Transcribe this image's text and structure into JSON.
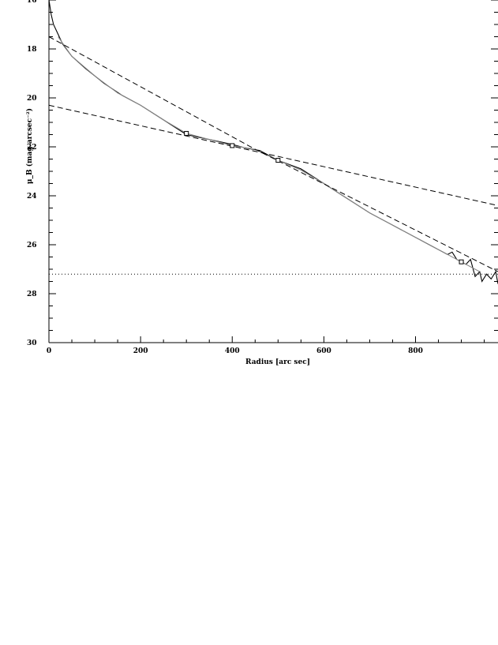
{
  "chart_data": {
    "type": "line",
    "xlabel": "Radius [arc sec]",
    "ylabel": "μ_B (mag arcsec⁻²)",
    "xlim": [
      0,
      980
    ],
    "ylim": [
      30,
      16
    ],
    "x_ticks": [
      0,
      200,
      400,
      600,
      800
    ],
    "x_tick_labels": [
      "0",
      "200",
      "400",
      "600",
      "800"
    ],
    "y_ticks": [
      18,
      20,
      22,
      24,
      26,
      28,
      30
    ],
    "y_tick_labels": [
      "18",
      "20",
      "22",
      "24",
      "26",
      "28",
      "30"
    ],
    "grid": false,
    "legend": "none",
    "series": [
      {
        "style": "solid",
        "color": "#000000",
        "points": [
          [
            0,
            16
          ],
          [
            5,
            16.6
          ],
          [
            10,
            17
          ],
          [
            20,
            17.4
          ],
          [
            30,
            17.8
          ],
          [
            50,
            18.3
          ],
          [
            80,
            18.8
          ],
          [
            120,
            19.4
          ],
          [
            160,
            19.9
          ],
          [
            200,
            20.3
          ],
          [
            250,
            20.9
          ],
          [
            300,
            21.5
          ],
          [
            350,
            21.7
          ],
          [
            400,
            21.9
          ],
          [
            430,
            22.05
          ],
          [
            460,
            22.15
          ],
          [
            500,
            22.55
          ],
          [
            550,
            22.9
          ],
          [
            600,
            23.5
          ],
          [
            650,
            24.1
          ],
          [
            700,
            24.7
          ],
          [
            750,
            25.2
          ],
          [
            800,
            25.7
          ],
          [
            830,
            26.0
          ],
          [
            850,
            26.2
          ],
          [
            870,
            26.4
          ],
          [
            880,
            26.3
          ],
          [
            890,
            26.6
          ],
          [
            900,
            26.7
          ],
          [
            910,
            26.8
          ],
          [
            920,
            26.6
          ],
          [
            930,
            27.3
          ],
          [
            940,
            27.1
          ],
          [
            945,
            27.5
          ],
          [
            955,
            27.2
          ],
          [
            965,
            27.4
          ],
          [
            975,
            27.1
          ],
          [
            980,
            27.6
          ]
        ]
      },
      {
        "style": "solid",
        "color": "#888888",
        "points": [
          [
            20,
            17.5
          ],
          [
            50,
            18.3
          ],
          [
            100,
            19.1
          ],
          [
            150,
            19.8
          ],
          [
            200,
            20.3
          ],
          [
            250,
            20.9
          ],
          [
            300,
            21.45
          ],
          [
            350,
            21.7
          ],
          [
            400,
            21.95
          ],
          [
            450,
            22.1
          ],
          [
            500,
            22.55
          ],
          [
            550,
            22.95
          ],
          [
            600,
            23.5
          ],
          [
            650,
            24.1
          ],
          [
            700,
            24.7
          ],
          [
            750,
            25.2
          ],
          [
            800,
            25.7
          ],
          [
            850,
            26.2
          ],
          [
            900,
            26.7
          ],
          [
            940,
            27.1
          ]
        ]
      },
      {
        "style": "dashed",
        "color": "#000000",
        "points": [
          [
            0,
            17.5
          ],
          [
            450,
            22.1
          ],
          [
            980,
            27.1
          ]
        ]
      },
      {
        "style": "dashed",
        "color": "#000000",
        "points": [
          [
            0,
            20.3
          ],
          [
            980,
            24.4
          ]
        ]
      },
      {
        "style": "dotted",
        "color": "#000000",
        "points": [
          [
            0,
            27.2
          ],
          [
            980,
            27.2
          ]
        ]
      }
    ],
    "markers": [
      {
        "shape": "square",
        "x": 300,
        "y": 21.45
      },
      {
        "shape": "square",
        "x": 400,
        "y": 21.95
      },
      {
        "shape": "square",
        "x": 500,
        "y": 22.55
      },
      {
        "shape": "square",
        "x": 900,
        "y": 26.7
      }
    ]
  }
}
